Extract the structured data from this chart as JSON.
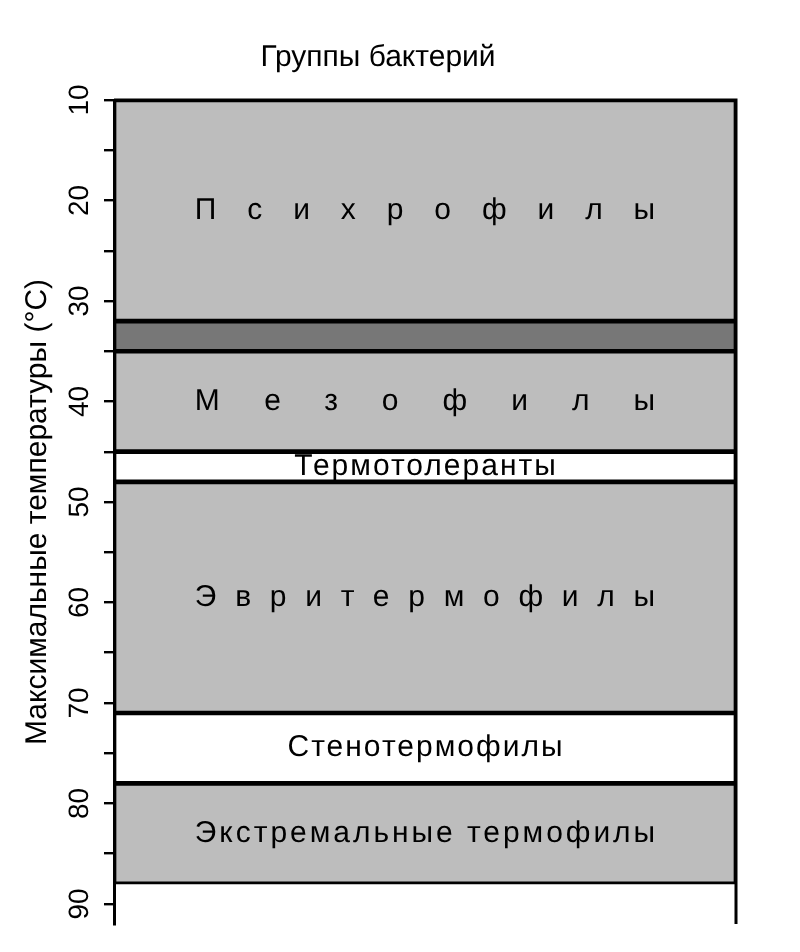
{
  "chart_data": {
    "type": "bar",
    "title": "Группы бактерий",
    "ylabel": "Максимальные температуры (°С)",
    "categories": [
      null
    ],
    "series": [
      {
        "name": "Психрофилы",
        "color": "#bdbdbd",
        "values": [
          22
        ],
        "base": [
          10
        ]
      },
      {
        "color": "#777777",
        "values": [
          3
        ],
        "base": [
          32
        ]
      },
      {
        "name": "Мезофилы",
        "color": "#bdbdbd",
        "values": [
          10
        ],
        "base": [
          35
        ]
      },
      {
        "name": "Термотолеранты",
        "color": "#ffffff",
        "values": [
          3
        ],
        "base": [
          45
        ]
      },
      {
        "name": "Эвритермофилы",
        "color": "#bdbdbd",
        "values": [
          23
        ],
        "base": [
          48
        ]
      },
      {
        "name": "Стенотермофилы",
        "color": "#ffffff",
        "values": [
          7
        ],
        "base": [
          71
        ]
      },
      {
        "name": "Экстремальные термофилы",
        "color": "#bdbdbd",
        "values": [
          10
        ],
        "base": [
          78
        ]
      }
    ],
    "ylim": [
      92,
      10
    ],
    "yticks": [
      10,
      {
        "value": 15,
        "label": null
      },
      20,
      {
        "value": 25,
        "label": null
      },
      30,
      {
        "value": 35,
        "label": null
      },
      40,
      {
        "value": 45,
        "label": null
      },
      50,
      {
        "value": 55,
        "label": null
      },
      60,
      {
        "value": 65,
        "label": null
      },
      70,
      {
        "value": 75,
        "label": null
      },
      80,
      {
        "value": 85,
        "label": null
      },
      90
    ]
  }
}
